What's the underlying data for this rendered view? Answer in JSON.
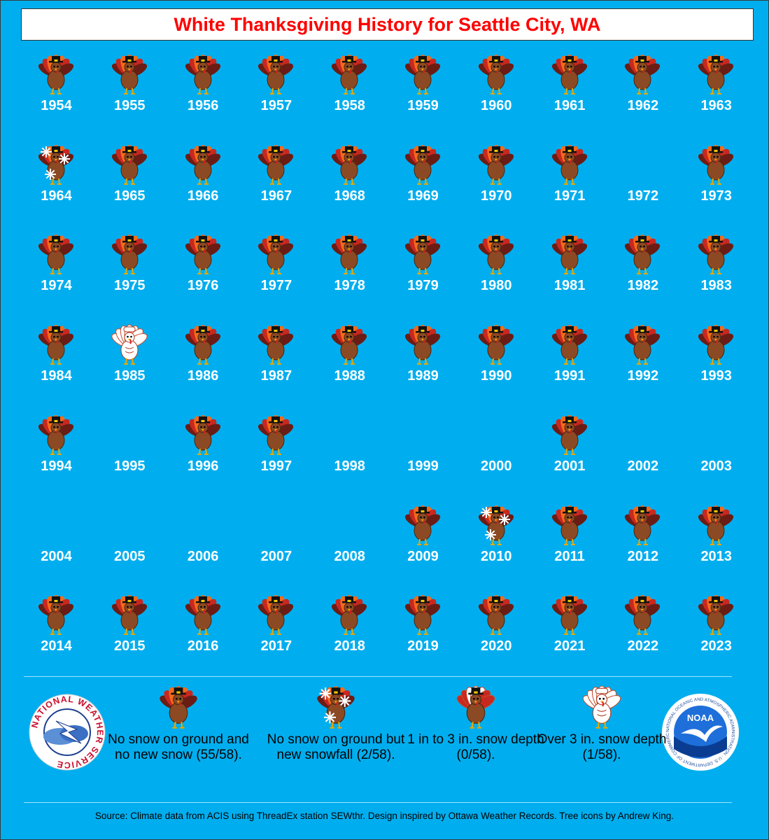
{
  "title": "White Thanksgiving History for Seattle City, WA",
  "icon_types": {
    "brown": "no snow on ground and no new snow",
    "snow": "no snow on ground but new snowfall",
    "white": "over 3 in. snow depth",
    "none": "no icon shown"
  },
  "years": [
    {
      "year": "1954",
      "icon": "brown"
    },
    {
      "year": "1955",
      "icon": "brown"
    },
    {
      "year": "1956",
      "icon": "brown"
    },
    {
      "year": "1957",
      "icon": "brown"
    },
    {
      "year": "1958",
      "icon": "brown"
    },
    {
      "year": "1959",
      "icon": "brown"
    },
    {
      "year": "1960",
      "icon": "brown"
    },
    {
      "year": "1961",
      "icon": "brown"
    },
    {
      "year": "1962",
      "icon": "brown"
    },
    {
      "year": "1963",
      "icon": "brown"
    },
    {
      "year": "1964",
      "icon": "snow"
    },
    {
      "year": "1965",
      "icon": "brown"
    },
    {
      "year": "1966",
      "icon": "brown"
    },
    {
      "year": "1967",
      "icon": "brown"
    },
    {
      "year": "1968",
      "icon": "brown"
    },
    {
      "year": "1969",
      "icon": "brown"
    },
    {
      "year": "1970",
      "icon": "brown"
    },
    {
      "year": "1971",
      "icon": "brown"
    },
    {
      "year": "1972",
      "icon": "none"
    },
    {
      "year": "1973",
      "icon": "brown"
    },
    {
      "year": "1974",
      "icon": "brown"
    },
    {
      "year": "1975",
      "icon": "brown"
    },
    {
      "year": "1976",
      "icon": "brown"
    },
    {
      "year": "1977",
      "icon": "brown"
    },
    {
      "year": "1978",
      "icon": "brown"
    },
    {
      "year": "1979",
      "icon": "brown"
    },
    {
      "year": "1980",
      "icon": "brown"
    },
    {
      "year": "1981",
      "icon": "brown"
    },
    {
      "year": "1982",
      "icon": "brown"
    },
    {
      "year": "1983",
      "icon": "brown"
    },
    {
      "year": "1984",
      "icon": "brown"
    },
    {
      "year": "1985",
      "icon": "white"
    },
    {
      "year": "1986",
      "icon": "brown"
    },
    {
      "year": "1987",
      "icon": "brown"
    },
    {
      "year": "1988",
      "icon": "brown"
    },
    {
      "year": "1989",
      "icon": "brown"
    },
    {
      "year": "1990",
      "icon": "brown"
    },
    {
      "year": "1991",
      "icon": "brown"
    },
    {
      "year": "1992",
      "icon": "brown"
    },
    {
      "year": "1993",
      "icon": "brown"
    },
    {
      "year": "1994",
      "icon": "brown"
    },
    {
      "year": "1995",
      "icon": "none"
    },
    {
      "year": "1996",
      "icon": "brown"
    },
    {
      "year": "1997",
      "icon": "brown"
    },
    {
      "year": "1998",
      "icon": "none"
    },
    {
      "year": "1999",
      "icon": "none"
    },
    {
      "year": "2000",
      "icon": "none"
    },
    {
      "year": "2001",
      "icon": "brown"
    },
    {
      "year": "2002",
      "icon": "none"
    },
    {
      "year": "2003",
      "icon": "none"
    },
    {
      "year": "2004",
      "icon": "none"
    },
    {
      "year": "2005",
      "icon": "none"
    },
    {
      "year": "2006",
      "icon": "none"
    },
    {
      "year": "2007",
      "icon": "none"
    },
    {
      "year": "2008",
      "icon": "none"
    },
    {
      "year": "2009",
      "icon": "brown"
    },
    {
      "year": "2010",
      "icon": "snow"
    },
    {
      "year": "2011",
      "icon": "brown"
    },
    {
      "year": "2012",
      "icon": "brown"
    },
    {
      "year": "2013",
      "icon": "brown"
    },
    {
      "year": "2014",
      "icon": "brown"
    },
    {
      "year": "2015",
      "icon": "brown"
    },
    {
      "year": "2016",
      "icon": "brown"
    },
    {
      "year": "2017",
      "icon": "brown"
    },
    {
      "year": "2018",
      "icon": "brown"
    },
    {
      "year": "2019",
      "icon": "brown"
    },
    {
      "year": "2020",
      "icon": "brown"
    },
    {
      "year": "2021",
      "icon": "brown"
    },
    {
      "year": "2022",
      "icon": "brown"
    },
    {
      "year": "2023",
      "icon": "brown"
    }
  ],
  "legend": [
    {
      "icon": "brown",
      "text": "No snow on ground and no new snow (55/58)."
    },
    {
      "icon": "snow",
      "text": "No snow on ground but new snowfall (2/58)."
    },
    {
      "icon": "partial",
      "text": "1 in to 3 in. snow depth (0/58)."
    },
    {
      "icon": "white",
      "text": "Over 3 in. snow depth (1/58)."
    }
  ],
  "logos": {
    "nws": "NATIONAL WEATHER SERVICE",
    "noaa": "NOAA",
    "noaa_ring": "NATIONAL OCEANIC AND ATMOSPHERIC ADMINISTRATION · U.S. DEPARTMENT OF COMMERCE"
  },
  "source": "Source: Climate data from ACIS using ThreadEx station SEWthr. Design inspired by Ottawa Weather Records. Tree icons by Andrew King.",
  "colors": {
    "background": "#00aeef",
    "title": "#ff0000",
    "turkey_body": "#8b4a24",
    "feather_orange": "#f26a1b",
    "feather_red": "#c8281f",
    "feather_dark": "#6b1d15",
    "white_turkey": "#ffffff"
  }
}
